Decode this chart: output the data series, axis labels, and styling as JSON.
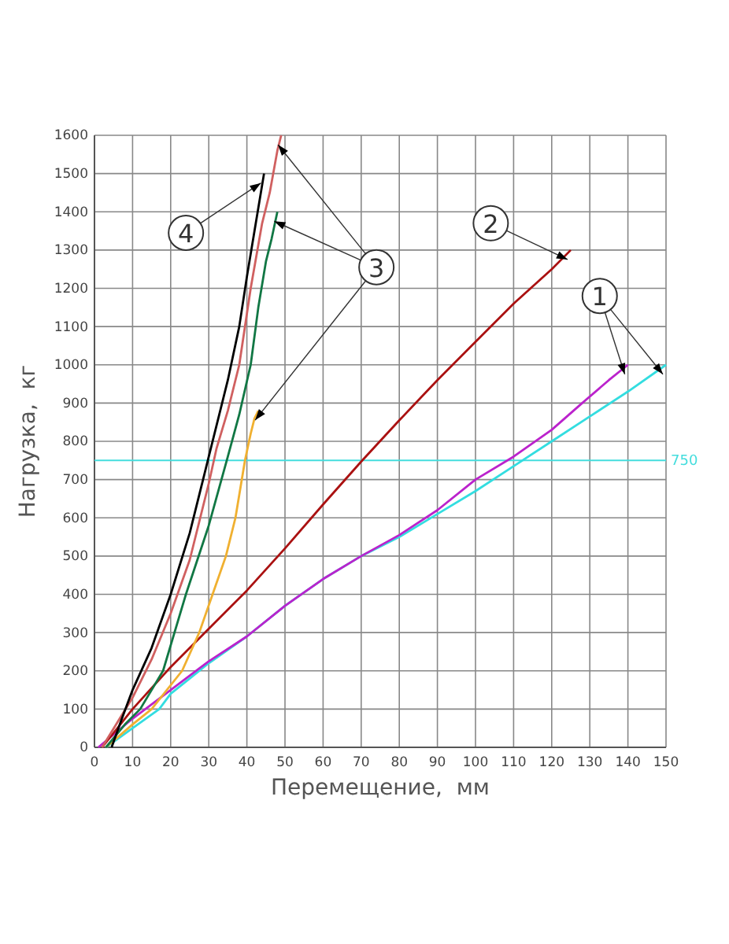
{
  "chart_data": {
    "type": "line",
    "xlabel": "Перемещение,  мм",
    "ylabel": "Нагрузка,  кг",
    "xlim": [
      0,
      150
    ],
    "xticks": [
      0,
      10,
      20,
      30,
      40,
      50,
      60,
      70,
      80,
      90,
      100,
      110,
      120,
      130,
      140,
      150
    ],
    "ylim": [
      0,
      1600
    ],
    "yticks": [
      0,
      100,
      200,
      300,
      400,
      500,
      600,
      700,
      800,
      900,
      1000,
      1100,
      1200,
      1300,
      1400,
      1500,
      1600
    ],
    "grid": true,
    "marker": "none",
    "line_style": "solid",
    "ref_lines": [
      {
        "axis": "y",
        "value": 750,
        "label": "750",
        "color": "#44dddd"
      }
    ],
    "annotations": [
      {
        "text": "1",
        "x": 132.6,
        "y": 1180
      },
      {
        "text": "2",
        "x": 104,
        "y": 1370
      },
      {
        "text": "3",
        "x": 74,
        "y": 1255
      },
      {
        "text": "4",
        "x": 24,
        "y": 1345
      }
    ],
    "series": [
      {
        "color": "#33dde0",
        "x": [
          3,
          10,
          17,
          20,
          30,
          40,
          50,
          60,
          70,
          80,
          90,
          100,
          110,
          120,
          130,
          140,
          150
        ],
        "values": [
          0,
          50,
          100,
          140,
          220,
          290,
          370,
          440,
          500,
          550,
          610,
          670,
          735,
          800,
          865,
          930,
          1000
        ]
      },
      {
        "color": "#bb22cc",
        "x": [
          1,
          10,
          20,
          30,
          40,
          50,
          60,
          70,
          80,
          90,
          100,
          110,
          120,
          128,
          135,
          140
        ],
        "values": [
          0,
          75,
          150,
          225,
          290,
          370,
          440,
          500,
          555,
          620,
          700,
          760,
          830,
          900,
          960,
          1000
        ]
      },
      {
        "color": "#aa1111",
        "x": [
          2,
          10,
          20,
          30,
          40,
          50,
          60,
          70,
          80,
          90,
          100,
          110,
          120,
          125
        ],
        "values": [
          0,
          100,
          210,
          310,
          410,
          520,
          635,
          747,
          855,
          960,
          1060,
          1160,
          1250,
          1300
        ]
      },
      {
        "color": "#f0b030",
        "x": [
          3,
          10,
          15,
          23,
          27.5,
          31,
          34.5,
          37,
          39.5,
          41,
          42,
          43
        ],
        "values": [
          0,
          60,
          100,
          200,
          300,
          400,
          500,
          600,
          750,
          820,
          860,
          880
        ]
      },
      {
        "color": "#117744",
        "x": [
          3,
          8,
          12,
          18,
          24,
          30,
          35,
          38,
          41,
          43,
          45,
          46.5,
          48
        ],
        "values": [
          0,
          60,
          100,
          200,
          400,
          580,
          760,
          870,
          1000,
          1150,
          1270,
          1330,
          1400
        ]
      },
      {
        "color": "#d06060",
        "x": [
          2,
          10,
          15,
          20,
          25,
          30,
          32,
          35,
          38,
          41,
          44,
          46,
          48,
          49
        ],
        "values": [
          0,
          130,
          230,
          350,
          490,
          690,
          780,
          880,
          1000,
          1200,
          1370,
          1450,
          1560,
          1600
        ]
      },
      {
        "color": "#000000",
        "x": [
          4.5,
          7,
          10,
          15,
          20,
          25,
          30,
          35,
          38,
          40,
          42,
          44.5
        ],
        "values": [
          0,
          70,
          150,
          260,
          400,
          560,
          760,
          960,
          1100,
          1230,
          1350,
          1500
        ]
      }
    ]
  }
}
